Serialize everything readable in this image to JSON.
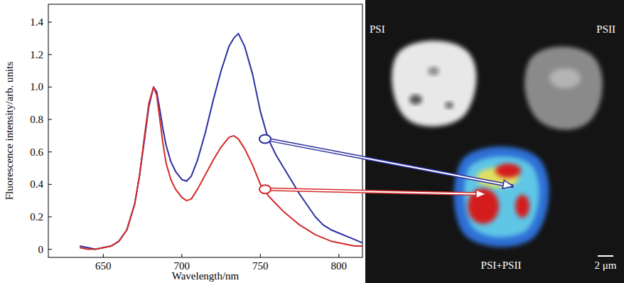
{
  "chart_data": {
    "type": "line",
    "x_label": "Wavelength/nm",
    "y_label": "Fluorescence intensity/arb. units",
    "x": [
      635,
      640,
      645,
      650,
      655,
      660,
      665,
      670,
      673,
      676,
      679,
      682,
      684,
      686,
      688,
      690,
      693,
      696,
      700,
      703,
      706,
      710,
      715,
      720,
      725,
      730,
      733,
      736,
      740,
      745,
      750,
      755,
      760,
      765,
      770,
      775,
      780,
      785,
      790,
      795,
      800,
      805,
      810,
      815
    ],
    "series": [
      {
        "color": "#2b2f9e",
        "values": [
          0.02,
          0.01,
          0.0,
          0.01,
          0.02,
          0.05,
          0.12,
          0.28,
          0.45,
          0.66,
          0.88,
          1.0,
          0.97,
          0.86,
          0.74,
          0.64,
          0.54,
          0.48,
          0.43,
          0.42,
          0.45,
          0.55,
          0.72,
          0.92,
          1.1,
          1.25,
          1.3,
          1.33,
          1.25,
          1.08,
          0.85,
          0.68,
          0.58,
          0.5,
          0.42,
          0.34,
          0.27,
          0.2,
          0.15,
          0.12,
          0.1,
          0.08,
          0.06,
          0.04
        ]
      },
      {
        "color": "#d42a2a",
        "values": [
          0.01,
          0.0,
          0.0,
          0.01,
          0.02,
          0.05,
          0.12,
          0.28,
          0.45,
          0.68,
          0.9,
          1.0,
          0.95,
          0.8,
          0.65,
          0.53,
          0.43,
          0.37,
          0.32,
          0.3,
          0.31,
          0.37,
          0.46,
          0.55,
          0.63,
          0.69,
          0.7,
          0.68,
          0.62,
          0.52,
          0.4,
          0.33,
          0.28,
          0.23,
          0.19,
          0.15,
          0.12,
          0.09,
          0.07,
          0.05,
          0.04,
          0.03,
          0.02,
          0.02
        ]
      }
    ],
    "xlim": [
      615,
      815
    ],
    "ylim": [
      -0.05,
      1.51
    ],
    "xticks": [
      650,
      700,
      750,
      800
    ],
    "yticks": [
      0,
      0.2,
      0.4,
      0.6,
      0.8,
      {
        "value": 1,
        "label": "1.0"
      },
      1.2,
      1.4
    ],
    "callouts": [
      {
        "series": 0,
        "x": 753,
        "y": 0.68
      },
      {
        "series": 1,
        "x": 753,
        "y": 0.37
      }
    ],
    "annotations": [
      "PSI",
      "PSII",
      "PSI+PSII",
      "2 μm"
    ],
    "grid": false
  }
}
